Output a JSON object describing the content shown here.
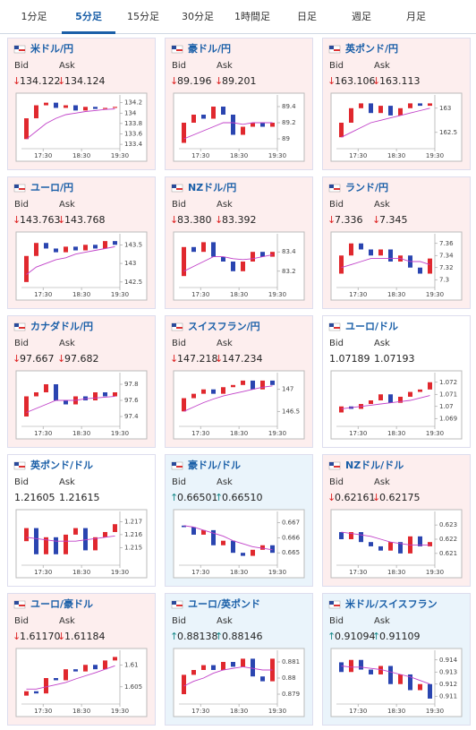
{
  "tabs": [
    "1分足",
    "5分足",
    "15分足",
    "30分足",
    "1時間足",
    "日足",
    "週足",
    "月足"
  ],
  "active_tab": 1,
  "labels": {
    "bid": "Bid",
    "ask": "Ask"
  },
  "xticks": [
    "17:30",
    "18:30",
    "19:30"
  ],
  "cards": [
    {
      "name": "米ドル/円",
      "trend": "↓",
      "bid": "134.122",
      "ask": "134.124",
      "chart": {
        "ylim": [
          133.35,
          134.28
        ],
        "yticks": [
          134.2,
          134,
          133.8,
          133.6,
          133.4
        ],
        "candles": [
          [
            133.5,
            133.9
          ],
          [
            133.9,
            134.15
          ],
          [
            134.15,
            134.2
          ],
          [
            134.2,
            134.1
          ],
          [
            134.1,
            134.15
          ],
          [
            134.15,
            134.05
          ],
          [
            134.05,
            134.12
          ],
          [
            134.12,
            134.08
          ],
          [
            134.08,
            134.1
          ],
          [
            134.1,
            134.12
          ]
        ],
        "ma": [
          133.5,
          133.65,
          133.8,
          133.9,
          133.97,
          134.0,
          134.03,
          134.05,
          134.07,
          134.08
        ]
      }
    },
    {
      "name": "豪ドル/円",
      "trend": "↓",
      "bid": "89.196",
      "ask": "89.201",
      "chart": {
        "ylim": [
          88.9,
          89.5
        ],
        "yticks": [
          89.4,
          89.2,
          89
        ],
        "candles": [
          [
            88.95,
            89.2
          ],
          [
            89.2,
            89.3
          ],
          [
            89.3,
            89.25
          ],
          [
            89.25,
            89.4
          ],
          [
            89.4,
            89.3
          ],
          [
            89.3,
            89.05
          ],
          [
            89.05,
            89.15
          ],
          [
            89.15,
            89.2
          ],
          [
            89.2,
            89.15
          ],
          [
            89.15,
            89.2
          ]
        ],
        "ma": [
          89.0,
          89.05,
          89.1,
          89.15,
          89.2,
          89.2,
          89.18,
          89.2,
          89.2,
          89.2
        ]
      }
    },
    {
      "name": "英ポンド/円",
      "trend": "↓",
      "bid": "163.106",
      "ask": "163.113",
      "chart": {
        "ylim": [
          162.2,
          163.2
        ],
        "yticks": [
          163,
          162.5
        ],
        "candles": [
          [
            162.4,
            162.7
          ],
          [
            162.7,
            163.0
          ],
          [
            163.0,
            163.1
          ],
          [
            163.1,
            162.9
          ],
          [
            162.9,
            163.05
          ],
          [
            163.05,
            162.85
          ],
          [
            162.85,
            163.0
          ],
          [
            163.0,
            163.1
          ],
          [
            163.1,
            163.05
          ],
          [
            163.05,
            163.1
          ]
        ],
        "ma": [
          162.4,
          162.5,
          162.6,
          162.7,
          162.75,
          162.8,
          162.85,
          162.9,
          162.95,
          163.0
        ]
      }
    },
    {
      "name": "ユーロ/円",
      "trend": "↓",
      "bid": "143.763",
      "ask": "143.768",
      "chart": {
        "ylim": [
          142.4,
          143.7
        ],
        "yticks": [
          143.5,
          143,
          142.5
        ],
        "candles": [
          [
            142.5,
            143.2
          ],
          [
            143.2,
            143.55
          ],
          [
            143.55,
            143.4
          ],
          [
            143.4,
            143.3
          ],
          [
            143.3,
            143.45
          ],
          [
            143.45,
            143.35
          ],
          [
            143.35,
            143.5
          ],
          [
            143.5,
            143.4
          ],
          [
            143.4,
            143.6
          ],
          [
            143.6,
            143.5
          ]
        ],
        "ma": [
          142.7,
          142.9,
          143.0,
          143.1,
          143.15,
          143.25,
          143.3,
          143.35,
          143.4,
          143.45
        ]
      }
    },
    {
      "name": "NZドル/円",
      "trend": "↓",
      "bid": "83.380",
      "ask": "83.392",
      "chart": {
        "ylim": [
          83.05,
          83.55
        ],
        "yticks": [
          83.4,
          83.2
        ],
        "candles": [
          [
            83.15,
            83.45
          ],
          [
            83.45,
            83.4
          ],
          [
            83.4,
            83.5
          ],
          [
            83.5,
            83.35
          ],
          [
            83.35,
            83.3
          ],
          [
            83.3,
            83.2
          ],
          [
            83.2,
            83.3
          ],
          [
            83.3,
            83.4
          ],
          [
            83.4,
            83.35
          ],
          [
            83.35,
            83.4
          ]
        ],
        "ma": [
          83.2,
          83.25,
          83.3,
          83.35,
          83.35,
          83.33,
          83.32,
          83.33,
          83.35,
          83.37
        ]
      }
    },
    {
      "name": "ランド/円",
      "trend": "↓",
      "bid": "7.336",
      "ask": "7.345",
      "chart": {
        "ylim": [
          7.29,
          7.37
        ],
        "yticks": [
          7.36,
          7.34,
          7.32,
          7.3
        ],
        "candles": [
          [
            7.31,
            7.34
          ],
          [
            7.34,
            7.36
          ],
          [
            7.36,
            7.35
          ],
          [
            7.35,
            7.34
          ],
          [
            7.34,
            7.35
          ],
          [
            7.35,
            7.33
          ],
          [
            7.33,
            7.34
          ],
          [
            7.34,
            7.32
          ],
          [
            7.32,
            7.31
          ],
          [
            7.31,
            7.335
          ]
        ],
        "ma": [
          7.32,
          7.325,
          7.33,
          7.335,
          7.335,
          7.335,
          7.335,
          7.33,
          7.33,
          7.325
        ]
      }
    },
    {
      "name": "カナダドル/円",
      "trend": "↓",
      "bid": "97.667",
      "ask": "97.682",
      "chart": {
        "ylim": [
          97.3,
          97.9
        ],
        "yticks": [
          97.8,
          97.6,
          97.4
        ],
        "candles": [
          [
            97.4,
            97.65
          ],
          [
            97.65,
            97.7
          ],
          [
            97.7,
            97.8
          ],
          [
            97.8,
            97.6
          ],
          [
            97.6,
            97.55
          ],
          [
            97.55,
            97.65
          ],
          [
            97.65,
            97.6
          ],
          [
            97.6,
            97.7
          ],
          [
            97.7,
            97.65
          ],
          [
            97.65,
            97.7
          ]
        ],
        "ma": [
          97.45,
          97.5,
          97.55,
          97.6,
          97.6,
          97.6,
          97.62,
          97.63,
          97.64,
          97.65
        ]
      }
    },
    {
      "name": "スイスフラン/円",
      "trend": "↓",
      "bid": "147.218",
      "ask": "147.234",
      "chart": {
        "ylim": [
          146.2,
          147.3
        ],
        "yticks": [
          147,
          146.5
        ],
        "candles": [
          [
            146.5,
            146.8
          ],
          [
            146.8,
            146.9
          ],
          [
            146.9,
            147.0
          ],
          [
            147.0,
            146.9
          ],
          [
            146.9,
            147.05
          ],
          [
            147.05,
            147.1
          ],
          [
            147.1,
            147.2
          ],
          [
            147.2,
            147.0
          ],
          [
            147.0,
            147.2
          ],
          [
            147.2,
            147.1
          ]
        ],
        "ma": [
          146.5,
          146.6,
          146.7,
          146.78,
          146.85,
          146.9,
          146.95,
          147.0,
          147.05,
          147.08
        ]
      }
    },
    {
      "name": "ユーロ/ドル",
      "trend": null,
      "bid": "1.07189",
      "ask": "1.07193",
      "chart": {
        "ylim": [
          1.0685,
          1.0725
        ],
        "yticks": [
          1.072,
          1.071,
          1.07,
          1.069
        ],
        "candles": [
          [
            1.0695,
            1.07
          ],
          [
            1.07,
            1.0698
          ],
          [
            1.0698,
            1.0702
          ],
          [
            1.0702,
            1.0705
          ],
          [
            1.0705,
            1.071
          ],
          [
            1.071,
            1.0703
          ],
          [
            1.0703,
            1.0708
          ],
          [
            1.0708,
            1.0712
          ],
          [
            1.0712,
            1.0714
          ],
          [
            1.0714,
            1.072
          ]
        ],
        "ma": [
          1.0698,
          1.0699,
          1.07,
          1.0701,
          1.0702,
          1.0703,
          1.0704,
          1.0705,
          1.0707,
          1.0709
        ]
      }
    },
    {
      "name": "英ポンド/ドル",
      "trend": null,
      "bid": "1.21605",
      "ask": "1.21615",
      "chart": {
        "ylim": [
          1.2138,
          1.2175
        ],
        "yticks": [
          1.217,
          1.216,
          1.215
        ],
        "candles": [
          [
            1.2155,
            1.2165
          ],
          [
            1.2165,
            1.2145
          ],
          [
            1.2145,
            1.2158
          ],
          [
            1.2158,
            1.2145
          ],
          [
            1.2145,
            1.216
          ],
          [
            1.216,
            1.2165
          ],
          [
            1.2165,
            1.2148
          ],
          [
            1.2148,
            1.2158
          ],
          [
            1.2158,
            1.2162
          ],
          [
            1.2162,
            1.2168
          ]
        ],
        "ma": [
          1.2158,
          1.2157,
          1.2156,
          1.2155,
          1.2155,
          1.2155,
          1.2156,
          1.2157,
          1.2158,
          1.2159
        ]
      }
    },
    {
      "name": "豪ドル/ドル",
      "trend": "↑",
      "bid": "0.66501",
      "ask": "0.66510",
      "chart": {
        "ylim": [
          0.6643,
          0.6675
        ],
        "yticks": [
          0.667,
          0.666,
          0.665
        ],
        "candles": [
          [
            0.6668,
            0.6667
          ],
          [
            0.6667,
            0.6662
          ],
          [
            0.6662,
            0.6665
          ],
          [
            0.6665,
            0.6655
          ],
          [
            0.6655,
            0.6658
          ],
          [
            0.6658,
            0.665
          ],
          [
            0.665,
            0.6648
          ],
          [
            0.6648,
            0.6652
          ],
          [
            0.6652,
            0.6655
          ],
          [
            0.6655,
            0.665
          ]
        ],
        "ma": [
          0.6668,
          0.6667,
          0.6665,
          0.6663,
          0.6661,
          0.6658,
          0.6656,
          0.6654,
          0.6653,
          0.6652
        ]
      }
    },
    {
      "name": "NZドル/ドル",
      "trend": "↓",
      "bid": "0.62161",
      "ask": "0.62175",
      "chart": {
        "ylim": [
          0.6203,
          0.6237
        ],
        "yticks": [
          0.623,
          0.622,
          0.621
        ],
        "candles": [
          [
            0.6225,
            0.622
          ],
          [
            0.622,
            0.6225
          ],
          [
            0.6225,
            0.6218
          ],
          [
            0.6218,
            0.6215
          ],
          [
            0.6215,
            0.6212
          ],
          [
            0.6212,
            0.6218
          ],
          [
            0.6218,
            0.621
          ],
          [
            0.621,
            0.6222
          ],
          [
            0.6222,
            0.6215
          ],
          [
            0.6215,
            0.6218
          ]
        ],
        "ma": [
          0.6225,
          0.6224,
          0.6223,
          0.6222,
          0.622,
          0.6218,
          0.6217,
          0.6216,
          0.6216,
          0.6216
        ]
      }
    },
    {
      "name": "ユーロ/豪ドル",
      "trend": "↓",
      "bid": "1.61170",
      "ask": "1.61184",
      "chart": {
        "ylim": [
          1.6015,
          1.6125
        ],
        "yticks": [
          1.61,
          1.605
        ],
        "candles": [
          [
            1.603,
            1.604
          ],
          [
            1.604,
            1.6035
          ],
          [
            1.6035,
            1.607
          ],
          [
            1.607,
            1.6065
          ],
          [
            1.6065,
            1.609
          ],
          [
            1.609,
            1.6085
          ],
          [
            1.6085,
            1.61
          ],
          [
            1.61,
            1.609
          ],
          [
            1.609,
            1.611
          ],
          [
            1.611,
            1.6118
          ]
        ],
        "ma": [
          1.6045,
          1.6045,
          1.605,
          1.6055,
          1.606,
          1.6068,
          1.6075,
          1.6082,
          1.609,
          1.6098
        ]
      }
    },
    {
      "name": "ユーロ/英ポンド",
      "trend": "↑",
      "bid": "0.88138",
      "ask": "0.88146",
      "chart": {
        "ylim": [
          0.8785,
          0.8815
        ],
        "yticks": [
          0.881,
          0.88,
          0.879
        ],
        "candles": [
          [
            0.879,
            0.8802
          ],
          [
            0.8802,
            0.8805
          ],
          [
            0.8805,
            0.8808
          ],
          [
            0.8808,
            0.8805
          ],
          [
            0.8805,
            0.881
          ],
          [
            0.881,
            0.8807
          ],
          [
            0.8807,
            0.8812
          ],
          [
            0.8812,
            0.8801
          ],
          [
            0.8801,
            0.8798
          ],
          [
            0.8798,
            0.8812
          ]
        ],
        "ma": [
          0.8795,
          0.8798,
          0.88,
          0.8803,
          0.8805,
          0.8806,
          0.8807,
          0.8806,
          0.8805,
          0.8805
        ]
      }
    },
    {
      "name": "米ドル/スイスフラン",
      "trend": "↑",
      "bid": "0.91094",
      "ask": "0.91109",
      "chart": {
        "ylim": [
          0.9105,
          0.9145
        ],
        "yticks": [
          0.914,
          0.913,
          0.912,
          0.911
        ],
        "candles": [
          [
            0.9138,
            0.913
          ],
          [
            0.913,
            0.914
          ],
          [
            0.914,
            0.9132
          ],
          [
            0.9132,
            0.9128
          ],
          [
            0.9128,
            0.9135
          ],
          [
            0.9135,
            0.912
          ],
          [
            0.912,
            0.9128
          ],
          [
            0.9128,
            0.9115
          ],
          [
            0.9115,
            0.912
          ],
          [
            0.912,
            0.9108
          ]
        ],
        "ma": [
          0.9135,
          0.9134,
          0.9134,
          0.9133,
          0.9132,
          0.913,
          0.9128,
          0.9126,
          0.9123,
          0.912
        ]
      }
    }
  ]
}
